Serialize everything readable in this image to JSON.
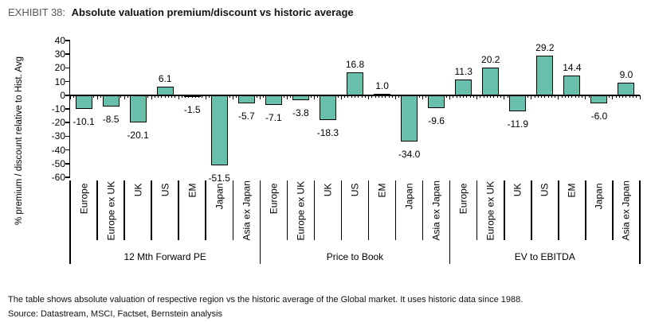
{
  "meta": {
    "exhibit_label": "EXHIBIT 38:",
    "title": "Absolute valuation premium/discount vs historic average"
  },
  "footnotes": {
    "description": "The table shows absolute valuation of respective region vs the historic average of the Global market. It uses historic data since 1988.",
    "source": "Source: Datastream, MSCI, Factset, Bernstein analysis"
  },
  "chart_data": {
    "type": "bar",
    "title": "Absolute valuation premium/discount vs historic average",
    "xlabel": "",
    "ylabel": "% premium / discount relative to Hist. Avg",
    "ylim": [
      -60,
      40
    ],
    "ytick_step": 10,
    "grid": false,
    "legend": "none",
    "bar_color": "#6abfac",
    "bar_border_color": "#000000",
    "categories": [
      "Europe",
      "Europe ex UK",
      "UK",
      "US",
      "EM",
      "Japan",
      "Asia ex Japan"
    ],
    "groups": [
      {
        "name": "12 Mth Forward PE",
        "values": [
          -10.1,
          -8.5,
          -20.1,
          6.1,
          -1.5,
          -51.5,
          -5.7
        ]
      },
      {
        "name": "Price to Book",
        "values": [
          -7.1,
          -3.8,
          -18.3,
          16.8,
          1.0,
          -34.0,
          -9.6
        ]
      },
      {
        "name": "EV to EBITDA",
        "values": [
          11.3,
          20.2,
          -11.9,
          29.2,
          14.4,
          -6.0,
          9.0
        ]
      }
    ]
  }
}
